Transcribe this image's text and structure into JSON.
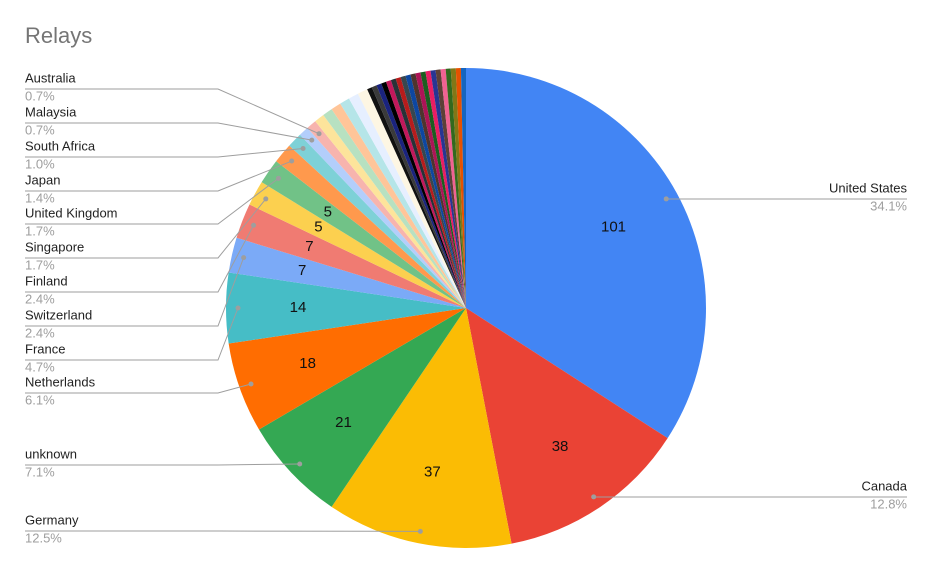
{
  "chart_data": {
    "type": "pie",
    "title": "Relays",
    "categories": [
      "United States",
      "Canada",
      "Germany",
      "unknown",
      "Netherlands",
      "France",
      "Switzerland",
      "Finland",
      "Singapore",
      "United Kingdom",
      "Japan",
      "South Africa",
      "Malaysia",
      "Australia",
      null,
      null,
      null,
      null,
      null,
      null,
      null,
      null,
      null,
      null,
      null,
      null,
      null,
      null,
      null,
      null,
      null,
      null,
      null,
      null,
      null,
      null,
      null,
      null,
      null,
      null
    ],
    "values": [
      101,
      38,
      37,
      21,
      18,
      14,
      7,
      7,
      5,
      5,
      4,
      3,
      2,
      2,
      2,
      2,
      2,
      2,
      2,
      2,
      1,
      1,
      1,
      1,
      1,
      1,
      1,
      1,
      1,
      1,
      1,
      1,
      1,
      1,
      1,
      1,
      1,
      1,
      1,
      1
    ],
    "percent_labels": [
      "34.1%",
      "12.8%",
      "12.5%",
      "7.1%",
      "6.1%",
      "4.7%",
      "2.4%",
      "2.4%",
      "1.7%",
      "1.7%",
      "1.4%",
      "1.0%",
      "0.7%",
      "0.7%",
      null,
      null,
      null,
      null,
      null,
      null,
      null,
      null,
      null,
      null,
      null,
      null,
      null,
      null,
      null,
      null,
      null,
      null,
      null,
      null,
      null,
      null,
      null,
      null,
      null,
      null
    ],
    "colors": [
      "#4285f4",
      "#ea4335",
      "#fbbc04",
      "#34a853",
      "#ff6d01",
      "#46bdc6",
      "#7baaf7",
      "#f07b72",
      "#fcd04f",
      "#71c287",
      "#ff994d",
      "#7ed1d7",
      "#b3cefb",
      "#f7b4ae",
      "#fde49b",
      "#b7e1c1",
      "#ffc599",
      "#b5e5e8",
      "#e6efff",
      "#fdf6e3",
      "#111111",
      "#3a3a3a",
      "#1a237e",
      "#000000",
      "#c2185b",
      "#263238",
      "#b71c1c",
      "#37474f",
      "#0d47a1",
      "#4e342e",
      "#ad1457",
      "#1b5e20",
      "#e91e63",
      "#283593",
      "#5d4037",
      "#f06292",
      "#33691e",
      "#827717",
      "#e65100",
      "#1565c0"
    ]
  }
}
